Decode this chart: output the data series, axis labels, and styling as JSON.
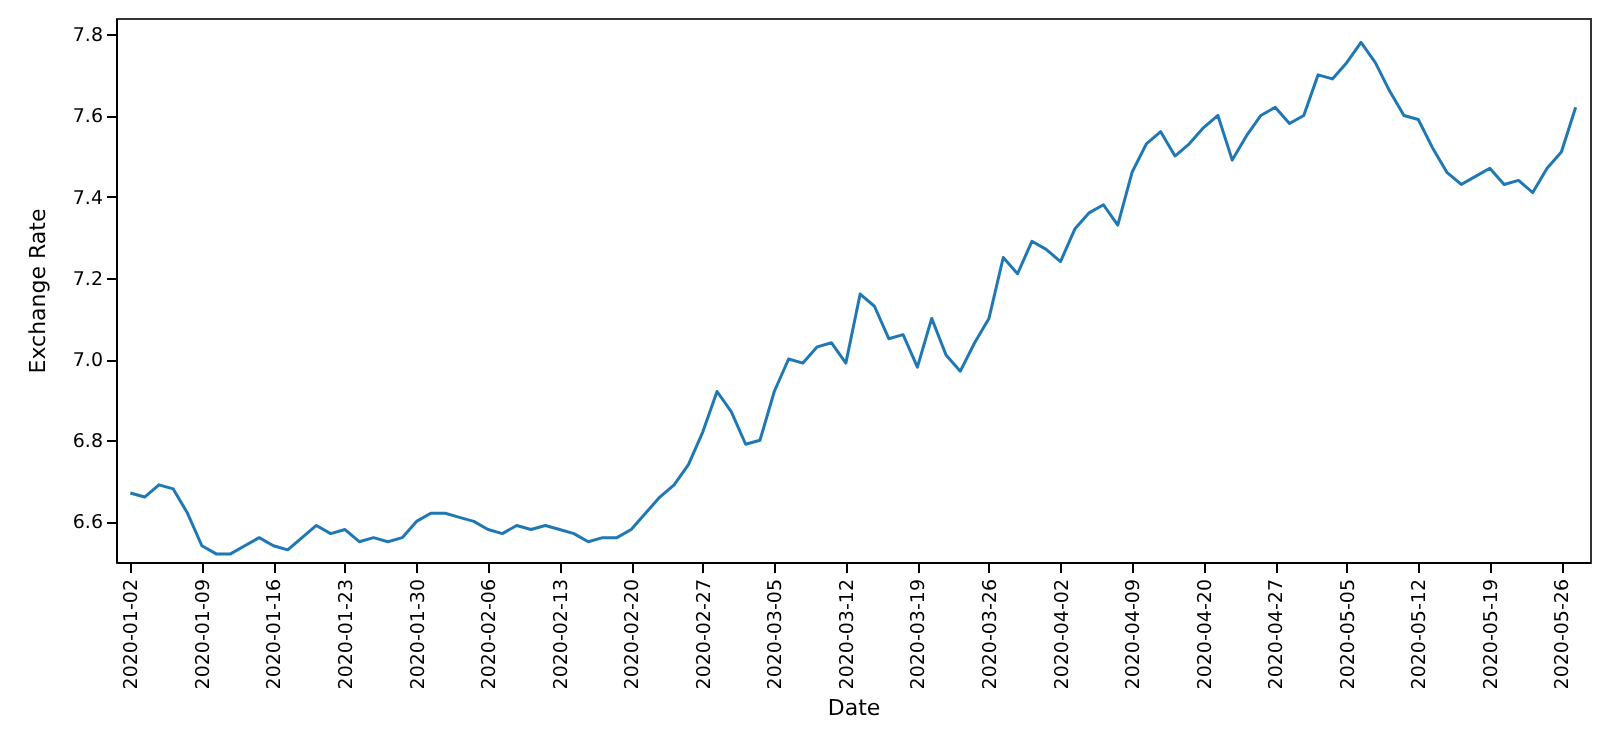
{
  "chart_data": {
    "type": "line",
    "xlabel": "Date",
    "ylabel": "Exchange Rate",
    "categories": [
      "2020-01-02",
      null,
      null,
      null,
      null,
      "2020-01-09",
      null,
      null,
      null,
      null,
      "2020-01-16",
      null,
      null,
      null,
      null,
      "2020-01-23",
      null,
      null,
      null,
      null,
      "2020-01-30",
      null,
      null,
      null,
      null,
      "2020-02-06",
      null,
      null,
      null,
      null,
      "2020-02-13",
      null,
      null,
      null,
      null,
      "2020-02-20",
      null,
      null,
      null,
      null,
      "2020-02-27",
      null,
      null,
      null,
      null,
      "2020-03-05",
      null,
      null,
      null,
      null,
      "2020-03-12",
      null,
      null,
      null,
      null,
      "2020-03-19",
      null,
      null,
      null,
      null,
      "2020-03-26",
      null,
      null,
      null,
      null,
      "2020-04-02",
      null,
      null,
      null,
      null,
      "2020-04-09",
      null,
      null,
      null,
      null,
      "2020-04-20",
      null,
      null,
      null,
      null,
      "2020-04-27",
      null,
      null,
      null,
      null,
      "2020-05-05",
      null,
      null,
      null,
      null,
      "2020-05-12",
      null,
      null,
      null,
      null,
      "2020-05-19",
      null,
      null,
      null,
      null,
      "2020-05-26",
      null
    ],
    "series": [
      {
        "color": "#1f77b4",
        "values": [
          6.67,
          6.66,
          6.69,
          6.68,
          6.62,
          6.54,
          6.52,
          6.52,
          6.54,
          6.56,
          6.54,
          6.53,
          6.56,
          6.59,
          6.57,
          6.58,
          6.55,
          6.56,
          6.55,
          6.56,
          6.6,
          6.62,
          6.62,
          6.61,
          6.6,
          6.58,
          6.57,
          6.59,
          6.58,
          6.59,
          6.58,
          6.57,
          6.55,
          6.56,
          6.56,
          6.58,
          6.62,
          6.66,
          6.69,
          6.74,
          6.82,
          6.92,
          6.87,
          6.79,
          6.8,
          6.92,
          7.0,
          6.99,
          7.03,
          7.04,
          6.99,
          7.16,
          7.13,
          7.05,
          7.06,
          6.98,
          7.1,
          7.01,
          6.97,
          7.04,
          7.1,
          7.25,
          7.21,
          7.29,
          7.27,
          7.24,
          7.32,
          7.36,
          7.38,
          7.33,
          7.46,
          7.53,
          7.56,
          7.5,
          7.53,
          7.57,
          7.6,
          7.49,
          7.55,
          7.6,
          7.62,
          7.58,
          7.6,
          7.7,
          7.69,
          7.73,
          7.78,
          7.73,
          7.66,
          7.6,
          7.59,
          7.52,
          7.46,
          7.43,
          7.45,
          7.47,
          7.43,
          7.44,
          7.41,
          7.47,
          7.51,
          7.62
        ]
      }
    ],
    "ylim": [
      6.5,
      7.84
    ],
    "yticks": [
      6.6,
      6.8,
      {
        "value": 7,
        "label": "7.0"
      },
      7.2,
      7.4,
      7.6,
      7.8
    ],
    "grid": false
  }
}
